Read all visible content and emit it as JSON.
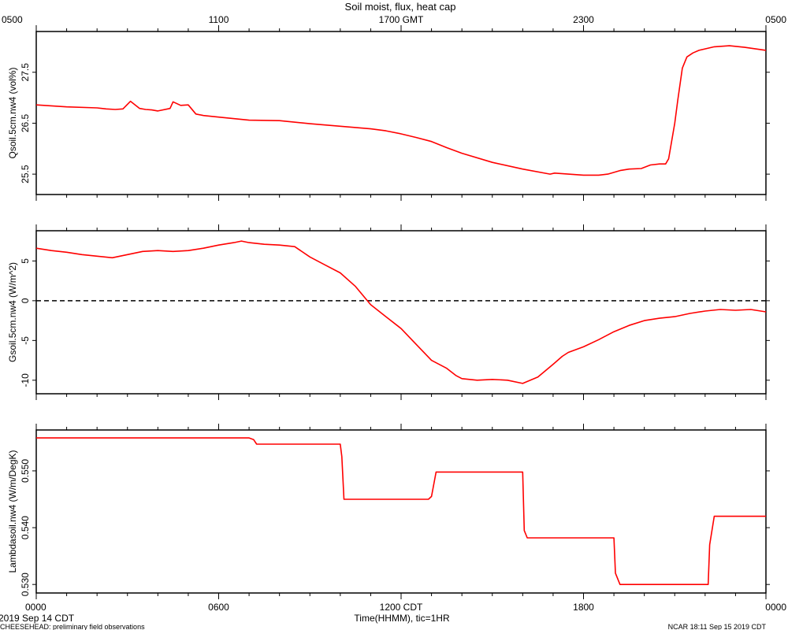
{
  "chart_data": {
    "title": "Soil moist, flux, heat cap",
    "x_hours_range": [
      0,
      24
    ],
    "top_axis": {
      "ticks": [
        {
          "h": 0,
          "label": "0500"
        },
        {
          "h": 6,
          "label": "1100"
        },
        {
          "h": 12,
          "label": "1700 GMT"
        },
        {
          "h": 18,
          "label": "2300"
        },
        {
          "h": 24,
          "label": "0500"
        }
      ]
    },
    "bottom_axis": {
      "ticks": [
        {
          "h": 0,
          "label": "0000"
        },
        {
          "h": 6,
          "label": "0600"
        },
        {
          "h": 12,
          "label": "1200 CDT"
        },
        {
          "h": 18,
          "label": "1800"
        },
        {
          "h": 24,
          "label": "0000"
        }
      ],
      "xlabel": "Time(HHMM), tic=1HR"
    },
    "panels": [
      {
        "type": "line",
        "ylabel": "Qsoil.5cm.nw4 (vol%)",
        "ylim": [
          25.1,
          28.3
        ],
        "yticks": [
          25.5,
          26.5,
          27.5
        ],
        "ytick_labels": [
          "25.5",
          "26.5",
          "27.5"
        ],
        "color": "#ff0000",
        "x": [
          0,
          1,
          2,
          2.3,
          2.6,
          2.85,
          3.1,
          3.4,
          3.6,
          3.8,
          4.0,
          4.4,
          4.5,
          4.75,
          5,
          5.25,
          5.5,
          6,
          7,
          8,
          9,
          10,
          11,
          11.5,
          12,
          12.5,
          13,
          13.5,
          14,
          15,
          16,
          16.9,
          17.05,
          17.5,
          18,
          18.5,
          18.8,
          19.2,
          19.5,
          19.9,
          20.2,
          20.5,
          20.7,
          20.8,
          21.0,
          21.1,
          21.25,
          21.4,
          21.6,
          21.8,
          22.3,
          22.8,
          23.3,
          24
        ],
        "y": [
          26.86,
          26.82,
          26.8,
          26.78,
          26.77,
          26.78,
          26.93,
          26.79,
          26.77,
          26.76,
          26.74,
          26.79,
          26.92,
          26.85,
          26.86,
          26.68,
          26.65,
          26.62,
          26.56,
          26.55,
          26.49,
          26.44,
          26.39,
          26.35,
          26.29,
          26.22,
          26.14,
          26.02,
          25.91,
          25.73,
          25.6,
          25.5,
          25.52,
          25.5,
          25.48,
          25.48,
          25.5,
          25.57,
          25.6,
          25.61,
          25.68,
          25.7,
          25.7,
          25.8,
          26.5,
          26.95,
          27.58,
          27.8,
          27.88,
          27.93,
          28.0,
          28.02,
          27.99,
          27.93
        ]
      },
      {
        "type": "line",
        "ylabel": "Gsoil.5cm.nw4 (W/m^2)",
        "ylim": [
          -11.7,
          8.8
        ],
        "yticks": [
          -10,
          -5,
          0,
          5
        ],
        "ytick_labels": [
          "-10",
          "-5",
          "0",
          "5"
        ],
        "reference_line": {
          "y": 0,
          "style": "dashed"
        },
        "color": "#ff0000",
        "x": [
          0,
          0.5,
          1,
          1.5,
          2,
          2.5,
          3,
          3.5,
          4,
          4.5,
          5,
          5.5,
          6,
          6.5,
          6.75,
          7,
          7.5,
          8,
          8.5,
          9,
          9.5,
          10,
          10.5,
          11,
          11.5,
          12,
          12.5,
          13,
          13.5,
          13.8,
          14,
          14.5,
          15,
          15.5,
          16,
          16.5,
          17,
          17.3,
          17.5,
          18,
          18.5,
          19,
          19.5,
          20,
          20.5,
          21,
          21.5,
          22,
          22.5,
          23,
          23.5,
          24
        ],
        "y": [
          6.6,
          6.3,
          6.1,
          5.8,
          5.6,
          5.4,
          5.8,
          6.2,
          6.3,
          6.2,
          6.3,
          6.6,
          7.0,
          7.3,
          7.5,
          7.3,
          7.1,
          7.0,
          6.8,
          5.5,
          4.5,
          3.5,
          1.8,
          -0.5,
          -2.0,
          -3.5,
          -5.5,
          -7.5,
          -8.5,
          -9.4,
          -9.8,
          -10.0,
          -9.9,
          -10.0,
          -10.4,
          -9.6,
          -8.0,
          -7.0,
          -6.5,
          -5.8,
          -4.9,
          -3.9,
          -3.1,
          -2.5,
          -2.2,
          -2.0,
          -1.6,
          -1.3,
          -1.1,
          -1.2,
          -1.1,
          -1.4
        ]
      },
      {
        "type": "line",
        "ylabel": "Lambdasoil.nw4 (W/m/DegK)",
        "ylim": [
          0.5285,
          0.5572
        ],
        "yticks": [
          0.53,
          0.54,
          0.55
        ],
        "ytick_labels": [
          "0.530",
          "0.540",
          "0.550"
        ],
        "color": "#ff0000",
        "x": [
          0,
          7,
          7.15,
          7.25,
          10,
          10.05,
          10.12,
          12.9,
          13.0,
          13.15,
          16.0,
          16.05,
          16.15,
          19.0,
          19.05,
          19.2,
          22.1,
          22.15,
          22.3,
          24
        ],
        "y": [
          0.5558,
          0.5558,
          0.5555,
          0.5547,
          0.5547,
          0.5525,
          0.545,
          0.545,
          0.5455,
          0.5498,
          0.5498,
          0.5395,
          0.5382,
          0.5382,
          0.532,
          0.53,
          0.53,
          0.537,
          0.542,
          0.542
        ]
      }
    ]
  },
  "footer": {
    "left_date": "2019 Sep 14 CDT",
    "left_note": "CHEESEHEAD: preliminary field observations",
    "right_note": "NCAR 18:11 Sep 15 2019 CDT"
  }
}
